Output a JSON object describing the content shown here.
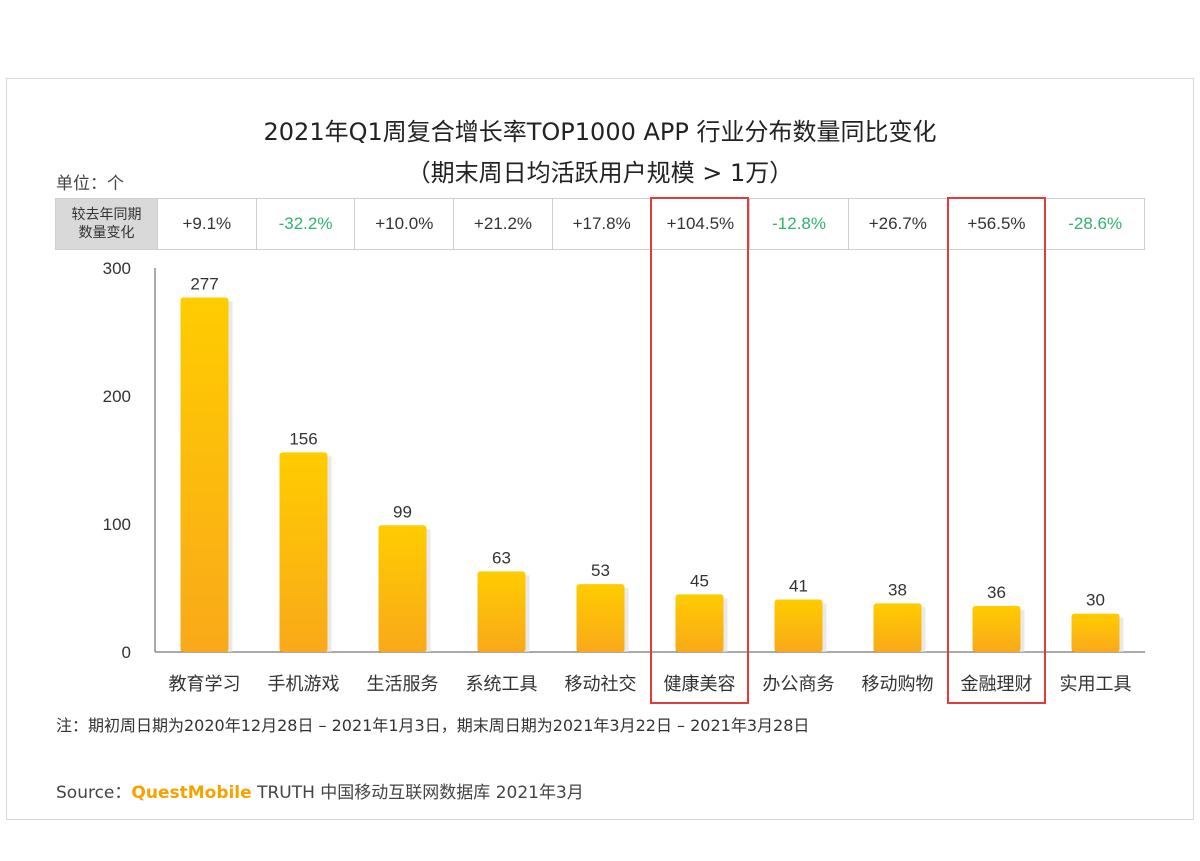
{
  "title_line1": "2021年Q1周复合增长率TOP1000 APP 行业分布数量同比变化",
  "title_line2": "（期末周日均活跃用户规模 > 1万）",
  "unit": "单位：个",
  "yoy_header": [
    "较去年同期",
    "数量变化"
  ],
  "yoy": [
    {
      "text": "+9.1%",
      "positive": true
    },
    {
      "text": "-32.2%",
      "positive": false
    },
    {
      "text": "+10.0%",
      "positive": true
    },
    {
      "text": "+21.2%",
      "positive": true
    },
    {
      "text": "+17.8%",
      "positive": true
    },
    {
      "text": "+104.5%",
      "positive": true
    },
    {
      "text": "-12.8%",
      "positive": false
    },
    {
      "text": "+26.7%",
      "positive": true
    },
    {
      "text": "+56.5%",
      "positive": true
    },
    {
      "text": "-28.6%",
      "positive": false
    }
  ],
  "chart_data": {
    "type": "bar",
    "categories": [
      "教育学习",
      "手机游戏",
      "生活服务",
      "系统工具",
      "移动社交",
      "健康美容",
      "办公商务",
      "移动购物",
      "金融理财",
      "实用工具"
    ],
    "values": [
      277,
      156,
      99,
      63,
      53,
      45,
      41,
      38,
      36,
      30
    ],
    "yticks": [
      0,
      100,
      200,
      300
    ],
    "ylim": [
      0,
      300
    ],
    "highlighted_categories": [
      "健康美容",
      "金融理财"
    ],
    "colors": {
      "bar_top": "#FFCC00",
      "bar_bottom": "#F9A91A",
      "highlight_border": "#E23B3B",
      "negative": "#2FB36F"
    }
  },
  "note": "注：期初周日期为2020年12月28日 – 2021年1月3日，期末周日期为2021年3月22日 – 2021年3月28日",
  "source": {
    "prefix": "Source：",
    "brand": "QuestMobile",
    "rest": " TRUTH 中国移动互联网数据库 2021年3月"
  }
}
